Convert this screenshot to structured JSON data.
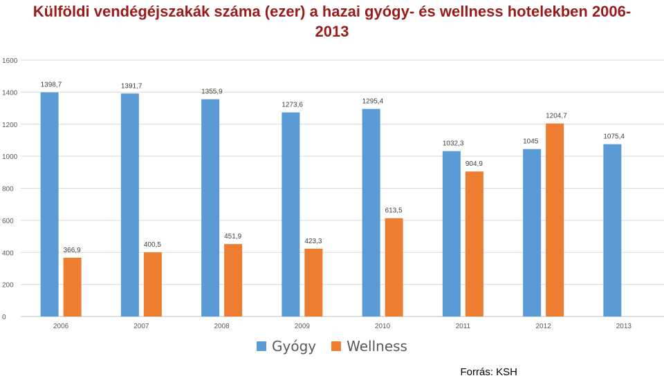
{
  "chart_data": {
    "type": "bar",
    "title_line1": "Külföldi vendégéjszakák száma (ezer) a hazai gyógy- és wellness hotelekben 2006-",
    "title_line2": "2013",
    "categories": [
      "2006",
      "2007",
      "2008",
      "2009",
      "2010",
      "2011",
      "2012",
      "2013"
    ],
    "series": [
      {
        "name": "Gyógy",
        "color": "#5b9bd5",
        "values": [
          1398.7,
          1391.7,
          1355.9,
          1273.6,
          1295.4,
          1032.3,
          1045,
          1075.4
        ],
        "labels": [
          "1398,7",
          "1391,7",
          "1355,9",
          "1273,6",
          "1295,4",
          "1032,3",
          "1045",
          "1075,4"
        ]
      },
      {
        "name": "Wellness",
        "color": "#ed7d31",
        "values": [
          366.9,
          400.5,
          451.9,
          423.3,
          613.5,
          904.9,
          1204.7,
          null
        ],
        "labels": [
          "366,9",
          "400,5",
          "451,9",
          "423,3",
          "613,5",
          "904,9",
          "1204,7",
          null
        ]
      }
    ],
    "ylim": [
      0,
      1600
    ],
    "yticks": [
      0,
      200,
      400,
      600,
      800,
      1000,
      1200,
      1400,
      1600
    ],
    "grid": true,
    "legend_position": "bottom"
  },
  "source": "Forrás: KSH"
}
